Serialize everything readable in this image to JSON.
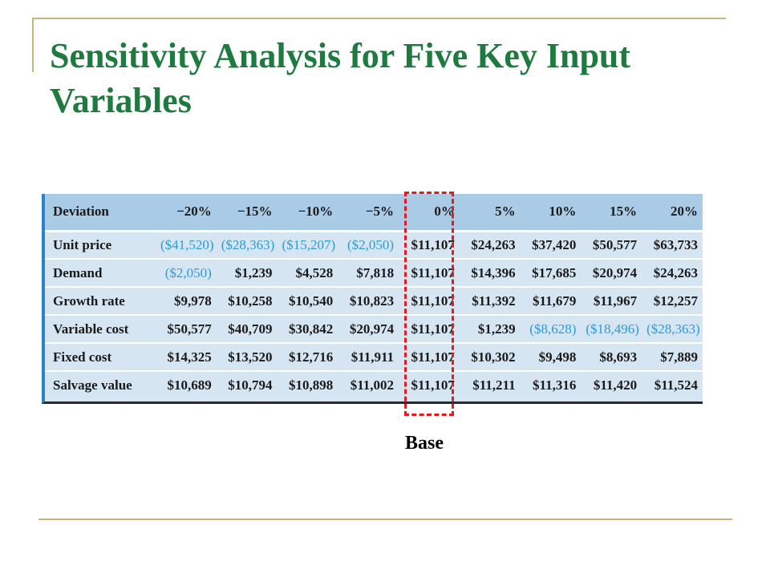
{
  "slide": {
    "title": "Sensitivity Analysis for Five Key Input Variables",
    "base_label": "Base"
  },
  "table": {
    "header": [
      "Deviation",
      "−20%",
      "−15%",
      "−10%",
      "−5%",
      "0%",
      "5%",
      "10%",
      "15%",
      "20%"
    ],
    "rows": [
      {
        "label": "Unit price",
        "values": [
          "($41,520)",
          "($28,363)",
          "($15,207)",
          "($2,050)",
          "$11,107",
          "$24,263",
          "$37,420",
          "$50,577",
          "$63,733"
        ]
      },
      {
        "label": "Demand",
        "values": [
          "($2,050)",
          "$1,239",
          "$4,528",
          "$7,818",
          "$11,107",
          "$14,396",
          "$17,685",
          "$20,974",
          "$24,263"
        ]
      },
      {
        "label": "Growth rate",
        "values": [
          "$9,978",
          "$10,258",
          "$10,540",
          "$10,823",
          "$11,107",
          "$11,392",
          "$11,679",
          "$11,967",
          "$12,257"
        ]
      },
      {
        "label": "Variable cost",
        "values": [
          "$50,577",
          "$40,709",
          "$30,842",
          "$20,974",
          "$11,107",
          "$1,239",
          "($8,628)",
          "($18,496)",
          "($28,363)"
        ]
      },
      {
        "label": "Fixed cost",
        "values": [
          "$14,325",
          "$13,520",
          "$12,716",
          "$11,911",
          "$11,107",
          "$10,302",
          "$9,498",
          "$8,693",
          "$7,889"
        ]
      },
      {
        "label": "Salvage value",
        "values": [
          "$10,689",
          "$10,794",
          "$10,898",
          "$11,002",
          "$11,107",
          "$11,211",
          "$11,316",
          "$11,420",
          "$11,524"
        ]
      }
    ]
  },
  "colors": {
    "title": "#1e7a3e",
    "negative": "#2a9bd7",
    "header_bg": "#a9cbe6",
    "row_bg": "#d6e5f2",
    "base_box": "#e01b22",
    "rule": "#c8b37a"
  }
}
